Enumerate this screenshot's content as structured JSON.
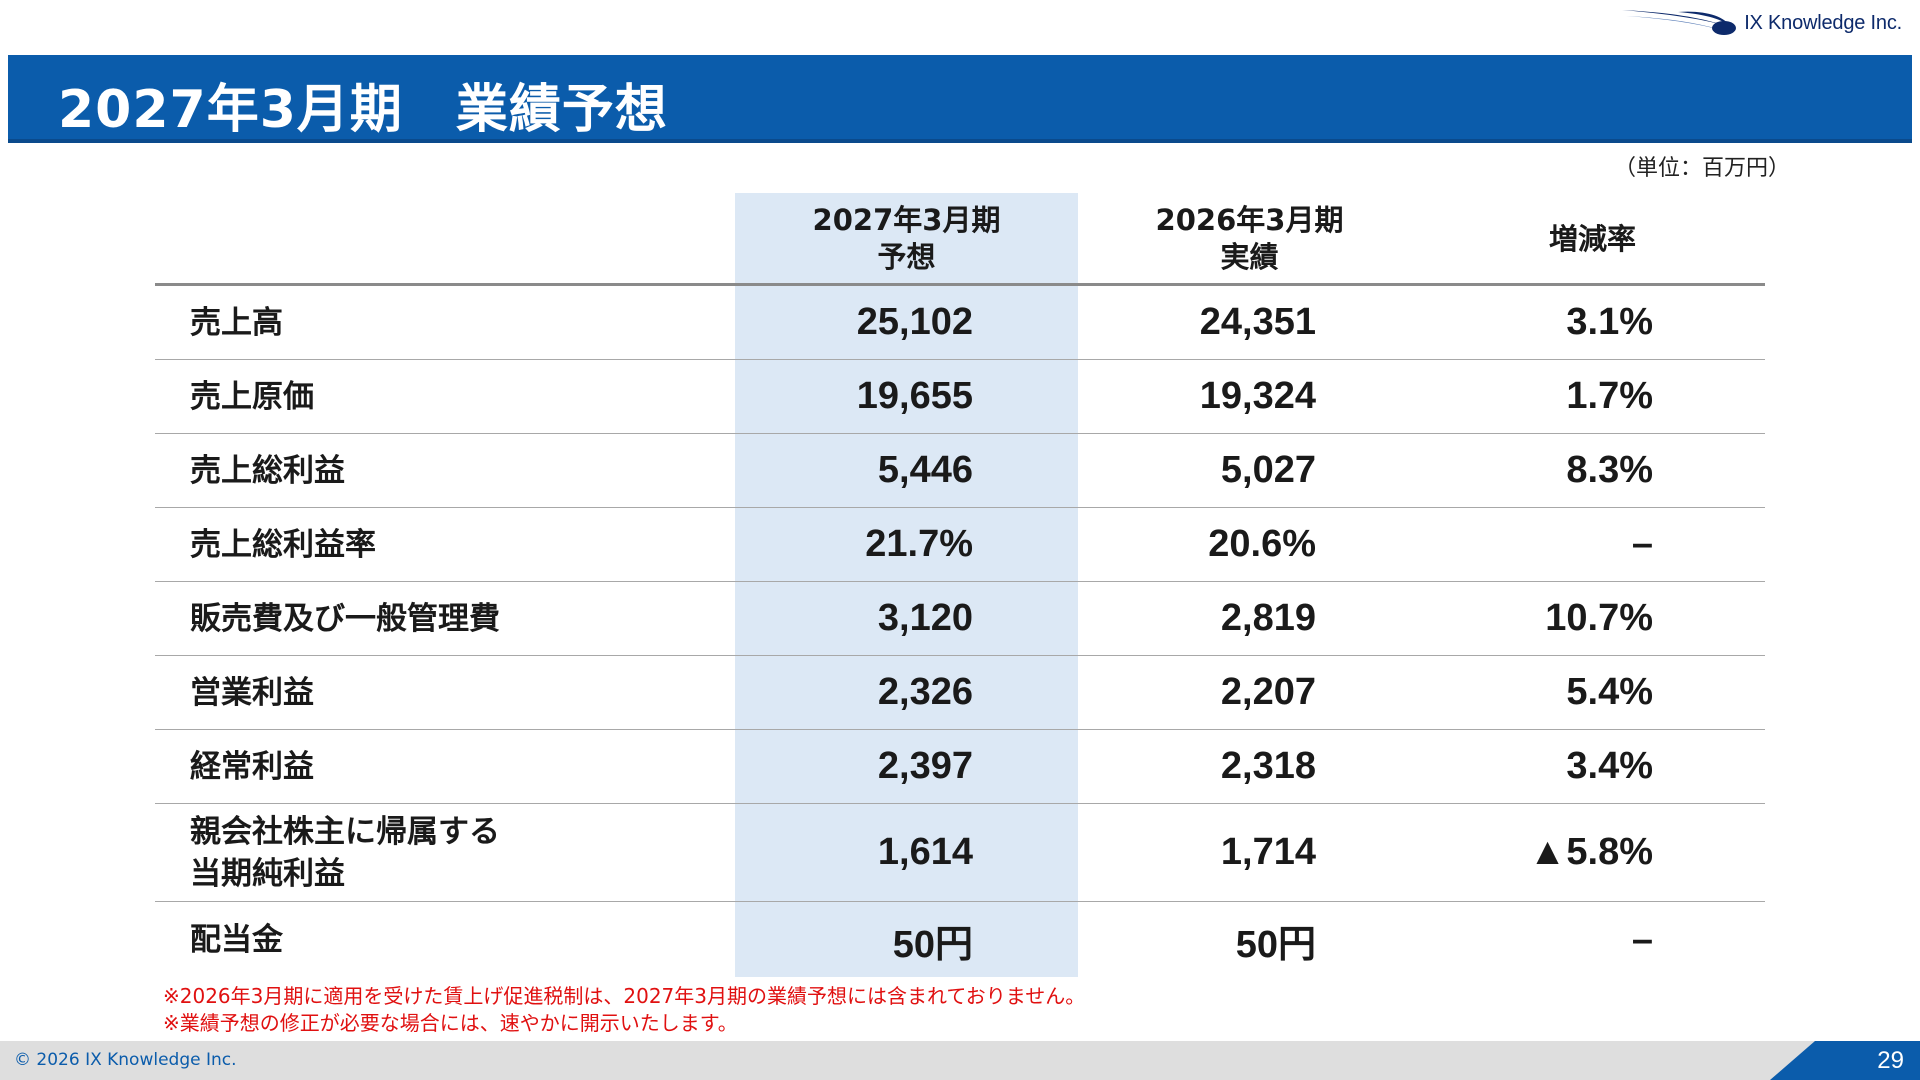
{
  "header": {
    "company_logo_text": "IX Knowledge Inc.",
    "title": "2027年3月期　業績予想",
    "unit_note": "（単位：百万円）"
  },
  "table": {
    "columns": [
      {
        "line1": "2027年3月期",
        "line2": "予想"
      },
      {
        "line1": "2026年3月期",
        "line2": "実績"
      },
      {
        "line1": "増減率",
        "line2": ""
      }
    ],
    "rows": [
      {
        "label": "売上高",
        "label2": "",
        "forecast": "25,102",
        "actual": "24,351",
        "change": "3.1%"
      },
      {
        "label": "売上原価",
        "label2": "",
        "forecast": "19,655",
        "actual": "19,324",
        "change": "1.7%"
      },
      {
        "label": "売上総利益",
        "label2": "",
        "forecast": "5,446",
        "actual": "5,027",
        "change": "8.3%"
      },
      {
        "label": "売上総利益率",
        "label2": "",
        "forecast": "21.7%",
        "actual": "20.6%",
        "change": "–"
      },
      {
        "label": "販売費及び一般管理費",
        "label2": "",
        "forecast": "3,120",
        "actual": "2,819",
        "change": "10.7%"
      },
      {
        "label": "営業利益",
        "label2": "",
        "forecast": "2,326",
        "actual": "2,207",
        "change": "5.4%"
      },
      {
        "label": "経常利益",
        "label2": "",
        "forecast": "2,397",
        "actual": "2,318",
        "change": "3.4%"
      },
      {
        "label": "親会社株主に帰属する",
        "label2": "当期純利益",
        "forecast": "1,614",
        "actual": "1,714",
        "change": "▲5.8%"
      },
      {
        "label": "配当金",
        "label2": "",
        "forecast": "50円",
        "actual": "50円",
        "change": "–"
      }
    ]
  },
  "notes": [
    "※2026年3月期に適用を受けた賃上げ促進税制は、2027年3月期の業績予想には含まれておりません。",
    "※業績予想の修正が必要な場合には、速やかに開示いたします。"
  ],
  "footer": {
    "copyright": "© 2026 IX Knowledge Inc.",
    "page_number": "29"
  },
  "colors": {
    "brand_blue": "#0b5cab",
    "highlight_column": "#dce8f5",
    "note_red": "#e01010"
  }
}
